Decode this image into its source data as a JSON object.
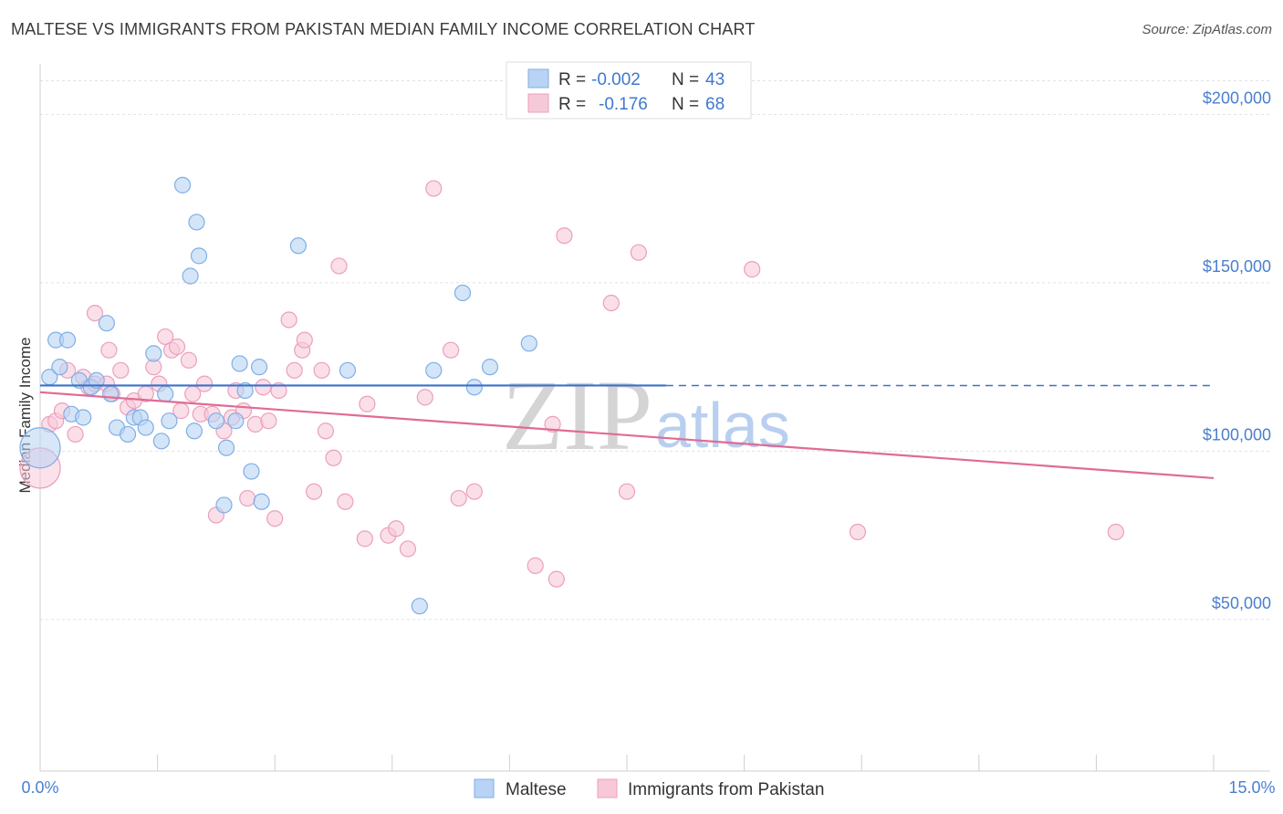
{
  "chart_data": {
    "type": "scatter",
    "title": "MALTESE VS IMMIGRANTS FROM PAKISTAN MEDIAN FAMILY INCOME CORRELATION CHART",
    "source": "Source: ZipAtlas.com",
    "ylabel": "Median Family Income",
    "xlabel": "",
    "xlim": [
      0,
      15
    ],
    "ylim": [
      5000,
      215000
    ],
    "y_ticks": [
      {
        "value": 50000,
        "label": "$50,000"
      },
      {
        "value": 100000,
        "label": "$100,000"
      },
      {
        "value": 150000,
        "label": "$150,000"
      },
      {
        "value": 200000,
        "label": "$200,000"
      }
    ],
    "x_tick_labels": {
      "min": "0.0%",
      "max": "15.0%"
    },
    "watermark": {
      "zip": "ZIP",
      "atlas": "atlas"
    },
    "legend": {
      "position": "top-center",
      "entries": [
        {
          "r_label": "R =",
          "r_value": "-0.002",
          "n_label": "N =",
          "n_value": "43"
        },
        {
          "r_label": "R =",
          "r_value": "-0.176",
          "n_label": "N =",
          "n_value": "68"
        }
      ]
    },
    "series": [
      {
        "name": "Maltese",
        "color": "#7faee6",
        "fill": "#b8d3f3",
        "trend": {
          "color": "#3a72c9",
          "x": [
            0.0,
            8.0
          ],
          "y": [
            119500,
            119500
          ],
          "dash_x": [
            8.0,
            15.0
          ]
        },
        "points": [
          {
            "x": 0.0,
            "y": 101000,
            "big": true
          },
          {
            "x": 0.12,
            "y": 122000
          },
          {
            "x": 0.2,
            "y": 133000
          },
          {
            "x": 0.25,
            "y": 125000
          },
          {
            "x": 0.35,
            "y": 133000
          },
          {
            "x": 0.4,
            "y": 111000
          },
          {
            "x": 0.5,
            "y": 121000
          },
          {
            "x": 0.55,
            "y": 110000
          },
          {
            "x": 0.65,
            "y": 119000
          },
          {
            "x": 0.72,
            "y": 121000
          },
          {
            "x": 0.85,
            "y": 138000
          },
          {
            "x": 0.9,
            "y": 117000
          },
          {
            "x": 0.98,
            "y": 107000
          },
          {
            "x": 1.12,
            "y": 105000
          },
          {
            "x": 1.2,
            "y": 110000
          },
          {
            "x": 1.28,
            "y": 110000
          },
          {
            "x": 1.35,
            "y": 107000
          },
          {
            "x": 1.45,
            "y": 129000
          },
          {
            "x": 1.55,
            "y": 103000
          },
          {
            "x": 1.6,
            "y": 117000
          },
          {
            "x": 1.65,
            "y": 109000
          },
          {
            "x": 1.82,
            "y": 179000
          },
          {
            "x": 1.92,
            "y": 152000
          },
          {
            "x": 1.97,
            "y": 106000
          },
          {
            "x": 2.0,
            "y": 168000
          },
          {
            "x": 2.03,
            "y": 158000
          },
          {
            "x": 2.25,
            "y": 109000
          },
          {
            "x": 2.38,
            "y": 101000
          },
          {
            "x": 2.35,
            "y": 84000
          },
          {
            "x": 2.5,
            "y": 109000
          },
          {
            "x": 2.55,
            "y": 126000
          },
          {
            "x": 2.62,
            "y": 118000
          },
          {
            "x": 2.7,
            "y": 94000
          },
          {
            "x": 2.8,
            "y": 125000
          },
          {
            "x": 2.83,
            "y": 85000
          },
          {
            "x": 3.3,
            "y": 161000
          },
          {
            "x": 3.93,
            "y": 124000
          },
          {
            "x": 4.85,
            "y": 54000
          },
          {
            "x": 5.03,
            "y": 124000
          },
          {
            "x": 5.4,
            "y": 147000
          },
          {
            "x": 5.55,
            "y": 119000
          },
          {
            "x": 5.75,
            "y": 125000
          },
          {
            "x": 6.25,
            "y": 132000
          }
        ]
      },
      {
        "name": "Immigrants from Pakistan",
        "color": "#ec9fbb",
        "fill": "#f7c9d8",
        "trend": {
          "color": "#e06b94",
          "x": [
            0.0,
            15.0
          ],
          "y": [
            117500,
            92000
          ]
        },
        "points": [
          {
            "x": 0.0,
            "y": 95000,
            "big": true
          },
          {
            "x": 0.12,
            "y": 108000
          },
          {
            "x": 0.2,
            "y": 109000
          },
          {
            "x": 0.28,
            "y": 112000
          },
          {
            "x": 0.35,
            "y": 124000
          },
          {
            "x": 0.45,
            "y": 105000
          },
          {
            "x": 0.55,
            "y": 122000
          },
          {
            "x": 0.62,
            "y": 119000
          },
          {
            "x": 0.7,
            "y": 120000
          },
          {
            "x": 0.85,
            "y": 120000
          },
          {
            "x": 0.92,
            "y": 117000
          },
          {
            "x": 0.7,
            "y": 141000
          },
          {
            "x": 0.88,
            "y": 130000
          },
          {
            "x": 1.03,
            "y": 124000
          },
          {
            "x": 1.12,
            "y": 113000
          },
          {
            "x": 1.2,
            "y": 115000
          },
          {
            "x": 1.35,
            "y": 117000
          },
          {
            "x": 1.45,
            "y": 125000
          },
          {
            "x": 1.52,
            "y": 120000
          },
          {
            "x": 1.6,
            "y": 134000
          },
          {
            "x": 1.68,
            "y": 130000
          },
          {
            "x": 1.75,
            "y": 131000
          },
          {
            "x": 1.8,
            "y": 112000
          },
          {
            "x": 1.9,
            "y": 127000
          },
          {
            "x": 1.95,
            "y": 117000
          },
          {
            "x": 2.05,
            "y": 111000
          },
          {
            "x": 2.1,
            "y": 120000
          },
          {
            "x": 2.2,
            "y": 111000
          },
          {
            "x": 2.25,
            "y": 81000
          },
          {
            "x": 2.35,
            "y": 106000
          },
          {
            "x": 2.45,
            "y": 110000
          },
          {
            "x": 2.5,
            "y": 118000
          },
          {
            "x": 2.6,
            "y": 112000
          },
          {
            "x": 2.65,
            "y": 86000
          },
          {
            "x": 2.75,
            "y": 108000
          },
          {
            "x": 2.85,
            "y": 119000
          },
          {
            "x": 2.92,
            "y": 109000
          },
          {
            "x": 3.0,
            "y": 80000
          },
          {
            "x": 3.05,
            "y": 118000
          },
          {
            "x": 3.18,
            "y": 139000
          },
          {
            "x": 3.25,
            "y": 124000
          },
          {
            "x": 3.35,
            "y": 130000
          },
          {
            "x": 3.38,
            "y": 133000
          },
          {
            "x": 3.5,
            "y": 88000
          },
          {
            "x": 3.6,
            "y": 124000
          },
          {
            "x": 3.65,
            "y": 106000
          },
          {
            "x": 3.75,
            "y": 98000
          },
          {
            "x": 3.82,
            "y": 155000
          },
          {
            "x": 3.9,
            "y": 85000
          },
          {
            "x": 4.15,
            "y": 74000
          },
          {
            "x": 4.18,
            "y": 114000
          },
          {
            "x": 4.45,
            "y": 75000
          },
          {
            "x": 4.55,
            "y": 77000
          },
          {
            "x": 4.7,
            "y": 71000
          },
          {
            "x": 4.92,
            "y": 116000
          },
          {
            "x": 5.03,
            "y": 178000
          },
          {
            "x": 5.25,
            "y": 130000
          },
          {
            "x": 5.35,
            "y": 86000
          },
          {
            "x": 5.55,
            "y": 88000
          },
          {
            "x": 6.33,
            "y": 66000
          },
          {
            "x": 6.55,
            "y": 108000
          },
          {
            "x": 6.6,
            "y": 62000
          },
          {
            "x": 6.7,
            "y": 164000
          },
          {
            "x": 7.3,
            "y": 144000
          },
          {
            "x": 7.5,
            "y": 88000
          },
          {
            "x": 7.65,
            "y": 159000
          },
          {
            "x": 9.1,
            "y": 154000
          },
          {
            "x": 10.45,
            "y": 76000
          },
          {
            "x": 13.75,
            "y": 76000
          }
        ]
      }
    ]
  }
}
